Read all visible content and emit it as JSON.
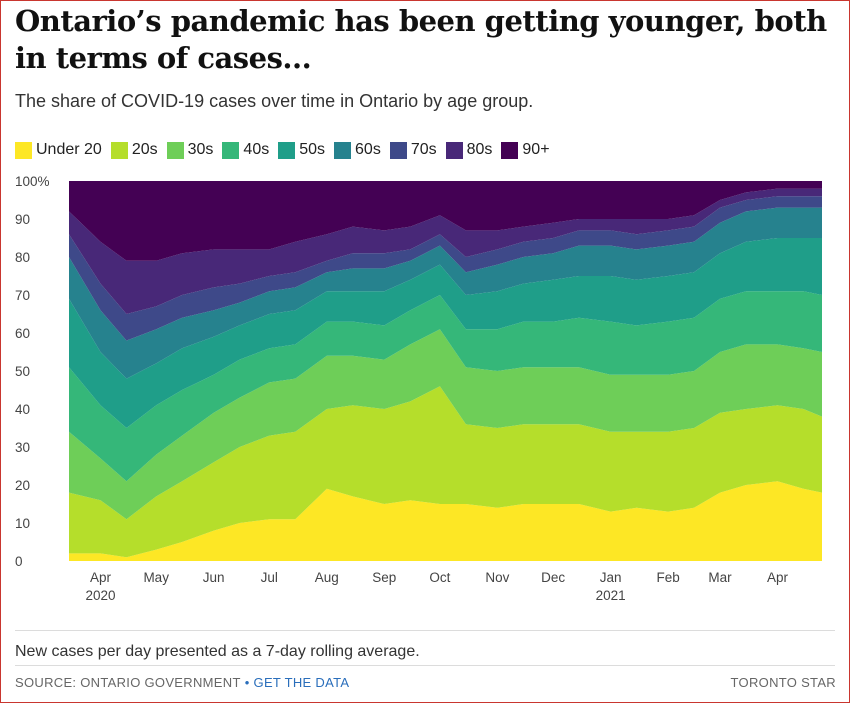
{
  "header": {
    "title": "Ontario’s pandemic has been getting younger, both in terms of cases...",
    "subtitle": "The share of COVID-19 cases over time in Ontario by age group."
  },
  "footer": {
    "note": "New cases per day presented as a 7-day rolling average.",
    "source": "SOURCE: ONTARIO GOVERNMENT",
    "link": "GET THE DATA",
    "credit": "TORONTO STAR"
  },
  "colors": {
    "Under 20": "#fde725",
    "20s": "#b5de2b",
    "30s": "#6ece58",
    "40s": "#35b779",
    "50s": "#1f9e89",
    "60s": "#26828e",
    "70s": "#3e4989",
    "80s": "#482878",
    "90+": "#440154"
  },
  "chart_data": {
    "type": "area",
    "stacked": true,
    "normalized": true,
    "legend": "top",
    "grid": false,
    "y_tick_labels": [
      "0",
      "10",
      "20",
      "30",
      "40",
      "50",
      "60",
      "70",
      "80",
      "90",
      "100%"
    ],
    "x_tick_labels": [
      {
        "month": "Apr",
        "year": "2020"
      },
      {
        "month": "May",
        "year": ""
      },
      {
        "month": "Jun",
        "year": ""
      },
      {
        "month": "Jul",
        "year": ""
      },
      {
        "month": "Aug",
        "year": ""
      },
      {
        "month": "Sep",
        "year": ""
      },
      {
        "month": "Oct",
        "year": ""
      },
      {
        "month": "Nov",
        "year": ""
      },
      {
        "month": "Dec",
        "year": ""
      },
      {
        "month": "Jan",
        "year": "2021"
      },
      {
        "month": "Feb",
        "year": ""
      },
      {
        "month": "Mar",
        "year": ""
      },
      {
        "month": "Apr",
        "year": ""
      }
    ],
    "ylim": [
      0,
      100
    ],
    "x": [
      "2020-03-15",
      "2020-04-01",
      "2020-04-15",
      "2020-05-01",
      "2020-05-15",
      "2020-06-01",
      "2020-06-15",
      "2020-07-01",
      "2020-07-15",
      "2020-08-01",
      "2020-08-15",
      "2020-09-01",
      "2020-09-15",
      "2020-10-01",
      "2020-10-15",
      "2020-11-01",
      "2020-11-15",
      "2020-12-01",
      "2020-12-15",
      "2021-01-01",
      "2021-01-15",
      "2021-02-01",
      "2021-02-15",
      "2021-03-01",
      "2021-03-15",
      "2021-04-01",
      "2021-04-15",
      "2021-04-25"
    ],
    "series": [
      {
        "name": "Under 20",
        "values": [
          2,
          2,
          1,
          3,
          5,
          8,
          10,
          11,
          11,
          19,
          17,
          15,
          16,
          15,
          15,
          14,
          15,
          15,
          15,
          13,
          14,
          13,
          14,
          18,
          20,
          21,
          19,
          18
        ]
      },
      {
        "name": "20s",
        "values": [
          16,
          14,
          10,
          14,
          16,
          18,
          20,
          22,
          23,
          21,
          24,
          25,
          26,
          31,
          21,
          21,
          21,
          21,
          21,
          21,
          20,
          21,
          21,
          21,
          20,
          20,
          21,
          20
        ]
      },
      {
        "name": "30s",
        "values": [
          16,
          11,
          10,
          11,
          12,
          13,
          13,
          14,
          14,
          14,
          13,
          13,
          15,
          15,
          15,
          15,
          15,
          15,
          15,
          15,
          15,
          15,
          15,
          16,
          17,
          16,
          16,
          17
        ]
      },
      {
        "name": "40s",
        "values": [
          17,
          14,
          14,
          13,
          12,
          10,
          10,
          9,
          9,
          9,
          9,
          9,
          9,
          9,
          10,
          11,
          12,
          12,
          13,
          14,
          13,
          14,
          14,
          14,
          14,
          14,
          15,
          15
        ]
      },
      {
        "name": "50s",
        "values": [
          18,
          14,
          13,
          11,
          11,
          10,
          9,
          9,
          9,
          8,
          8,
          9,
          8,
          8,
          9,
          10,
          10,
          11,
          11,
          12,
          12,
          12,
          12,
          12,
          13,
          14,
          14,
          15
        ]
      },
      {
        "name": "60s",
        "values": [
          11,
          11,
          10,
          9,
          8,
          7,
          6,
          6,
          6,
          5,
          6,
          6,
          5,
          5,
          6,
          7,
          7,
          7,
          8,
          8,
          8,
          8,
          8,
          8,
          8,
          8,
          8,
          8
        ]
      },
      {
        "name": "70s",
        "values": [
          6,
          7,
          7,
          6,
          6,
          6,
          5,
          4,
          4,
          3,
          4,
          4,
          3,
          3,
          4,
          4,
          4,
          4,
          4,
          4,
          4,
          4,
          4,
          4,
          3,
          3,
          3,
          3
        ]
      },
      {
        "name": "80s",
        "values": [
          6,
          11,
          14,
          12,
          11,
          10,
          9,
          7,
          8,
          7,
          7,
          6,
          6,
          5,
          7,
          5,
          4,
          4,
          3,
          3,
          4,
          3,
          3,
          2,
          2,
          2,
          2,
          2
        ]
      },
      {
        "name": "90+",
        "values": [
          8,
          16,
          21,
          21,
          19,
          18,
          18,
          18,
          16,
          14,
          12,
          13,
          12,
          9,
          13,
          13,
          12,
          11,
          10,
          10,
          10,
          10,
          9,
          5,
          3,
          2,
          2,
          2
        ]
      }
    ]
  }
}
